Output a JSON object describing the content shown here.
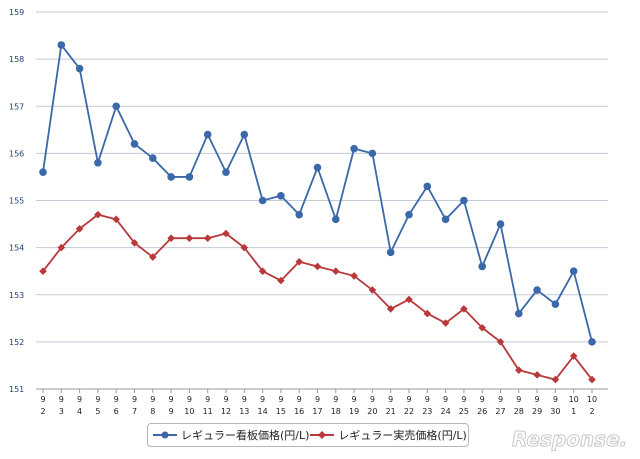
{
  "chart_data": {
    "type": "line",
    "categories": [
      {
        "month": "9",
        "day": "2"
      },
      {
        "month": "9",
        "day": "3"
      },
      {
        "month": "9",
        "day": "4"
      },
      {
        "month": "9",
        "day": "5"
      },
      {
        "month": "9",
        "day": "6"
      },
      {
        "month": "9",
        "day": "7"
      },
      {
        "month": "9",
        "day": "8"
      },
      {
        "month": "9",
        "day": "9"
      },
      {
        "month": "9",
        "day": "10"
      },
      {
        "month": "9",
        "day": "11"
      },
      {
        "month": "9",
        "day": "12"
      },
      {
        "month": "9",
        "day": "13"
      },
      {
        "month": "9",
        "day": "14"
      },
      {
        "month": "9",
        "day": "15"
      },
      {
        "month": "9",
        "day": "16"
      },
      {
        "month": "9",
        "day": "17"
      },
      {
        "month": "9",
        "day": "18"
      },
      {
        "month": "9",
        "day": "19"
      },
      {
        "month": "9",
        "day": "20"
      },
      {
        "month": "9",
        "day": "21"
      },
      {
        "month": "9",
        "day": "22"
      },
      {
        "month": "9",
        "day": "23"
      },
      {
        "month": "9",
        "day": "24"
      },
      {
        "month": "9",
        "day": "25"
      },
      {
        "month": "9",
        "day": "26"
      },
      {
        "month": "9",
        "day": "27"
      },
      {
        "month": "9",
        "day": "28"
      },
      {
        "month": "9",
        "day": "29"
      },
      {
        "month": "9",
        "day": "30"
      },
      {
        "month": "10",
        "day": "1"
      },
      {
        "month": "10",
        "day": "2"
      }
    ],
    "series": [
      {
        "name": "レギュラー看板価格(円/L)",
        "color": "#3a68a8",
        "marker": "circle",
        "values": [
          155.6,
          158.3,
          157.8,
          155.8,
          157.0,
          156.2,
          155.9,
          155.5,
          155.5,
          156.4,
          155.6,
          156.4,
          155.0,
          155.1,
          154.7,
          155.7,
          154.6,
          156.1,
          156.0,
          153.9,
          154.7,
          155.3,
          154.6,
          155.0,
          153.6,
          154.5,
          152.6,
          153.1,
          152.8,
          153.5,
          152.0
        ]
      },
      {
        "name": "レギュラー実売価格(円/L)",
        "color": "#b9383a",
        "marker": "diamond",
        "values": [
          153.5,
          154.0,
          154.4,
          154.7,
          154.6,
          154.1,
          153.8,
          154.2,
          154.2,
          154.2,
          154.3,
          154.0,
          153.5,
          153.3,
          153.7,
          153.6,
          153.5,
          153.4,
          153.1,
          152.7,
          152.9,
          152.6,
          152.4,
          152.7,
          152.3,
          152.0,
          151.4,
          151.3,
          151.2,
          151.7,
          151.2
        ]
      }
    ],
    "ylim": [
      151,
      159
    ],
    "yticks": [
      151,
      152,
      153,
      154,
      155,
      156,
      157,
      158,
      159
    ],
    "grid": true,
    "legend_position": "bottom-center"
  },
  "watermark": {
    "text": "Response."
  }
}
